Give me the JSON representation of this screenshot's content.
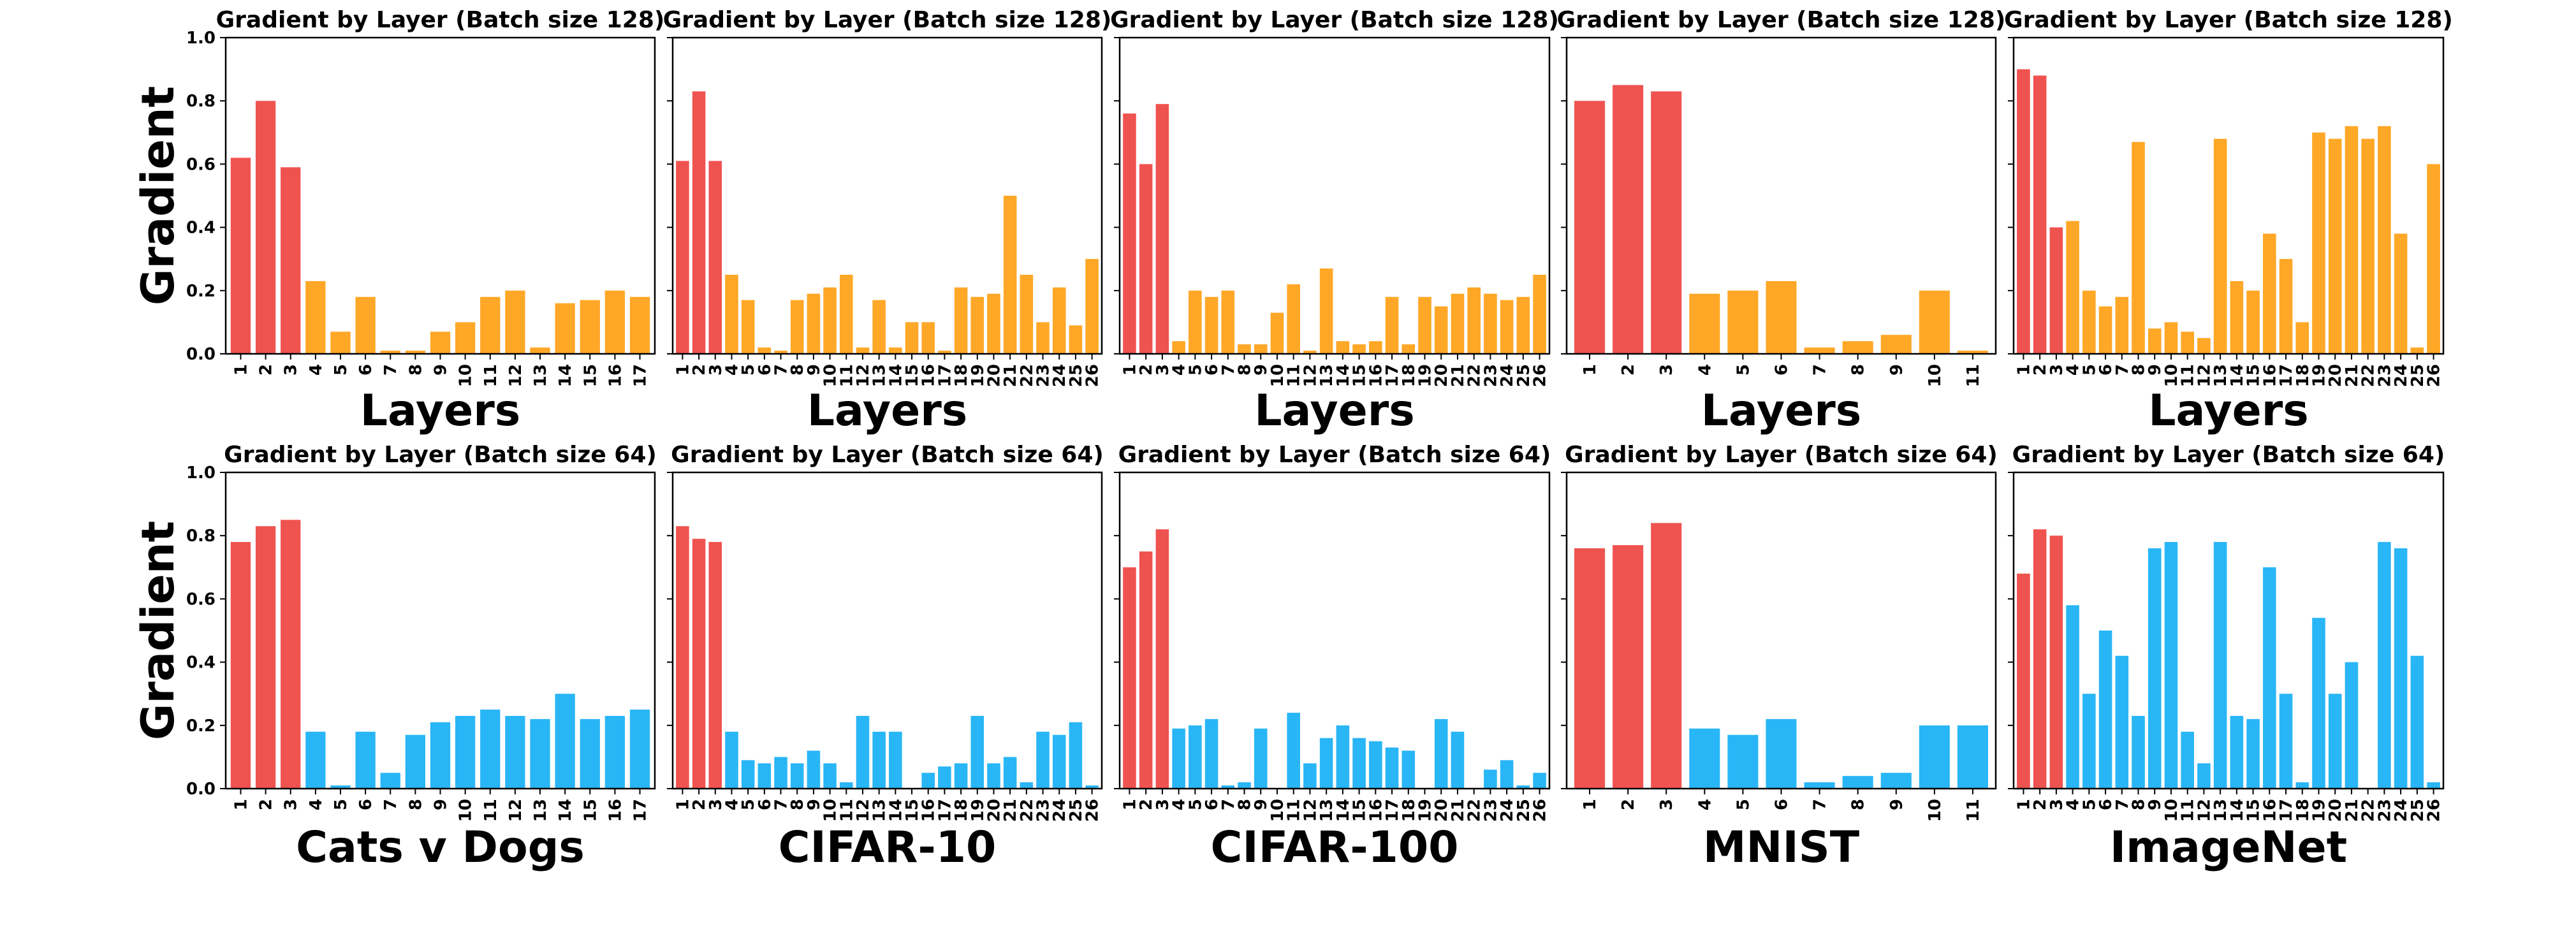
{
  "colors": {
    "highlight": "#EF5350",
    "row_top": "#FFA726",
    "row_bottom": "#29B6F6"
  },
  "ylabel": "Gradient",
  "yticks": [
    "0.0",
    "0.2",
    "0.4",
    "0.6",
    "0.8",
    "1.0"
  ],
  "chart_data": [
    {
      "type": "bar",
      "row": 0,
      "col": 0,
      "title": "Gradient by Layer (Batch size 128)",
      "xlabel": "Layers",
      "ylabel": "Gradient",
      "ylim": [
        0,
        1
      ],
      "highlight_count": 3,
      "categories": [
        "1",
        "2",
        "3",
        "4",
        "5",
        "6",
        "7",
        "8",
        "9",
        "10",
        "11",
        "12",
        "13",
        "14",
        "15",
        "16",
        "17"
      ],
      "values": [
        0.62,
        0.8,
        0.59,
        0.23,
        0.07,
        0.18,
        0.01,
        0.01,
        0.07,
        0.1,
        0.18,
        0.2,
        0.02,
        0.16,
        0.17,
        0.2,
        0.18
      ]
    },
    {
      "type": "bar",
      "row": 0,
      "col": 1,
      "title": "Gradient by Layer (Batch size 128)",
      "xlabel": "Layers",
      "ylabel": "Gradient",
      "ylim": [
        0,
        1
      ],
      "highlight_count": 3,
      "categories": [
        "1",
        "2",
        "3",
        "4",
        "5",
        "6",
        "7",
        "8",
        "9",
        "10",
        "11",
        "12",
        "13",
        "14",
        "15",
        "16",
        "17",
        "18",
        "19",
        "20",
        "21",
        "22",
        "23",
        "24",
        "25",
        "26"
      ],
      "values": [
        0.61,
        0.83,
        0.61,
        0.25,
        0.17,
        0.02,
        0.01,
        0.17,
        0.19,
        0.21,
        0.25,
        0.02,
        0.17,
        0.02,
        0.1,
        0.1,
        0.01,
        0.21,
        0.18,
        0.19,
        0.5,
        0.25,
        0.1,
        0.21,
        0.09,
        0.3
      ]
    },
    {
      "type": "bar",
      "row": 0,
      "col": 2,
      "title": "Gradient by Layer (Batch size 128)",
      "xlabel": "Layers",
      "ylabel": "Gradient",
      "ylim": [
        0,
        1
      ],
      "highlight_count": 3,
      "categories": [
        "1",
        "2",
        "3",
        "4",
        "5",
        "6",
        "7",
        "8",
        "9",
        "10",
        "11",
        "12",
        "13",
        "14",
        "15",
        "16",
        "17",
        "18",
        "19",
        "20",
        "21",
        "22",
        "23",
        "24",
        "25",
        "26"
      ],
      "values": [
        0.76,
        0.6,
        0.79,
        0.04,
        0.2,
        0.18,
        0.2,
        0.03,
        0.03,
        0.13,
        0.22,
        0.01,
        0.27,
        0.04,
        0.03,
        0.04,
        0.18,
        0.03,
        0.18,
        0.15,
        0.19,
        0.21,
        0.19,
        0.17,
        0.18,
        0.25
      ]
    },
    {
      "type": "bar",
      "row": 0,
      "col": 3,
      "title": "Gradient by Layer (Batch size 128)",
      "xlabel": "Layers",
      "ylabel": "Gradient",
      "ylim": [
        0,
        1
      ],
      "highlight_count": 3,
      "categories": [
        "1",
        "2",
        "3",
        "4",
        "5",
        "6",
        "7",
        "8",
        "9",
        "10",
        "11"
      ],
      "values": [
        0.8,
        0.85,
        0.83,
        0.19,
        0.2,
        0.23,
        0.02,
        0.04,
        0.06,
        0.2,
        0.01
      ]
    },
    {
      "type": "bar",
      "row": 0,
      "col": 4,
      "title": "Gradient by Layer (Batch size 128)",
      "xlabel": "Layers",
      "ylabel": "Gradient",
      "ylim": [
        0,
        1
      ],
      "highlight_count": 3,
      "categories": [
        "1",
        "2",
        "3",
        "4",
        "5",
        "6",
        "7",
        "8",
        "9",
        "10",
        "11",
        "12",
        "13",
        "14",
        "15",
        "16",
        "17",
        "18",
        "19",
        "20",
        "21",
        "22",
        "23",
        "24",
        "25",
        "26"
      ],
      "values": [
        0.9,
        0.88,
        0.4,
        0.42,
        0.2,
        0.15,
        0.18,
        0.67,
        0.08,
        0.1,
        0.07,
        0.05,
        0.68,
        0.23,
        0.2,
        0.38,
        0.3,
        0.1,
        0.7,
        0.68,
        0.72,
        0.68,
        0.72,
        0.38,
        0.02,
        0.6
      ]
    },
    {
      "type": "bar",
      "row": 1,
      "col": 0,
      "title": "Gradient by Layer (Batch size 64)",
      "xlabel": "Cats v Dogs",
      "ylabel": "Gradient",
      "ylim": [
        0,
        1
      ],
      "highlight_count": 3,
      "categories": [
        "1",
        "2",
        "3",
        "4",
        "5",
        "6",
        "7",
        "8",
        "9",
        "10",
        "11",
        "12",
        "13",
        "14",
        "15",
        "16",
        "17"
      ],
      "values": [
        0.78,
        0.83,
        0.85,
        0.18,
        0.01,
        0.18,
        0.05,
        0.17,
        0.21,
        0.23,
        0.25,
        0.23,
        0.22,
        0.3,
        0.22,
        0.23,
        0.25
      ]
    },
    {
      "type": "bar",
      "row": 1,
      "col": 1,
      "title": "Gradient by Layer (Batch size 64)",
      "xlabel": "CIFAR-10",
      "ylabel": "Gradient",
      "ylim": [
        0,
        1
      ],
      "highlight_count": 3,
      "categories": [
        "1",
        "2",
        "3",
        "4",
        "5",
        "6",
        "7",
        "8",
        "9",
        "10",
        "11",
        "12",
        "13",
        "14",
        "15",
        "16",
        "17",
        "18",
        "19",
        "20",
        "21",
        "22",
        "23",
        "24",
        "25",
        "26"
      ],
      "values": [
        0.83,
        0.79,
        0.78,
        0.18,
        0.09,
        0.08,
        0.1,
        0.08,
        0.12,
        0.08,
        0.02,
        0.23,
        0.18,
        0.18,
        0.0,
        0.05,
        0.07,
        0.08,
        0.23,
        0.08,
        0.1,
        0.02,
        0.18,
        0.17,
        0.21,
        0.01
      ]
    },
    {
      "type": "bar",
      "row": 1,
      "col": 2,
      "title": "Gradient by Layer (Batch size 64)",
      "xlabel": "CIFAR-100",
      "ylabel": "Gradient",
      "ylim": [
        0,
        1
      ],
      "highlight_count": 3,
      "categories": [
        "1",
        "2",
        "3",
        "4",
        "5",
        "6",
        "7",
        "8",
        "9",
        "10",
        "11",
        "12",
        "13",
        "14",
        "15",
        "16",
        "17",
        "18",
        "19",
        "20",
        "21",
        "22",
        "23",
        "24",
        "25",
        "26"
      ],
      "values": [
        0.7,
        0.75,
        0.82,
        0.19,
        0.2,
        0.22,
        0.01,
        0.02,
        0.19,
        0.0,
        0.24,
        0.08,
        0.16,
        0.2,
        0.16,
        0.15,
        0.13,
        0.12,
        0.0,
        0.22,
        0.18,
        0.0,
        0.06,
        0.09,
        0.01,
        0.05
      ]
    },
    {
      "type": "bar",
      "row": 1,
      "col": 3,
      "title": "Gradient by Layer (Batch size 64)",
      "xlabel": "MNIST",
      "ylabel": "Gradient",
      "ylim": [
        0,
        1
      ],
      "highlight_count": 3,
      "categories": [
        "1",
        "2",
        "3",
        "4",
        "5",
        "6",
        "7",
        "8",
        "9",
        "10",
        "11"
      ],
      "values": [
        0.76,
        0.77,
        0.84,
        0.19,
        0.17,
        0.22,
        0.02,
        0.04,
        0.05,
        0.2,
        0.2
      ]
    },
    {
      "type": "bar",
      "row": 1,
      "col": 4,
      "title": "Gradient by Layer (Batch size 64)",
      "xlabel": "ImageNet",
      "ylabel": "Gradient",
      "ylim": [
        0,
        1
      ],
      "highlight_count": 3,
      "categories": [
        "1",
        "2",
        "3",
        "4",
        "5",
        "6",
        "7",
        "8",
        "9",
        "10",
        "11",
        "12",
        "13",
        "14",
        "15",
        "16",
        "17",
        "18",
        "19",
        "20",
        "21",
        "22",
        "23",
        "24",
        "25",
        "26"
      ],
      "values": [
        0.68,
        0.82,
        0.8,
        0.58,
        0.3,
        0.5,
        0.42,
        0.23,
        0.76,
        0.78,
        0.18,
        0.08,
        0.78,
        0.23,
        0.22,
        0.7,
        0.3,
        0.02,
        0.54,
        0.3,
        0.4,
        0.0,
        0.78,
        0.76,
        0.42,
        0.02
      ]
    }
  ]
}
